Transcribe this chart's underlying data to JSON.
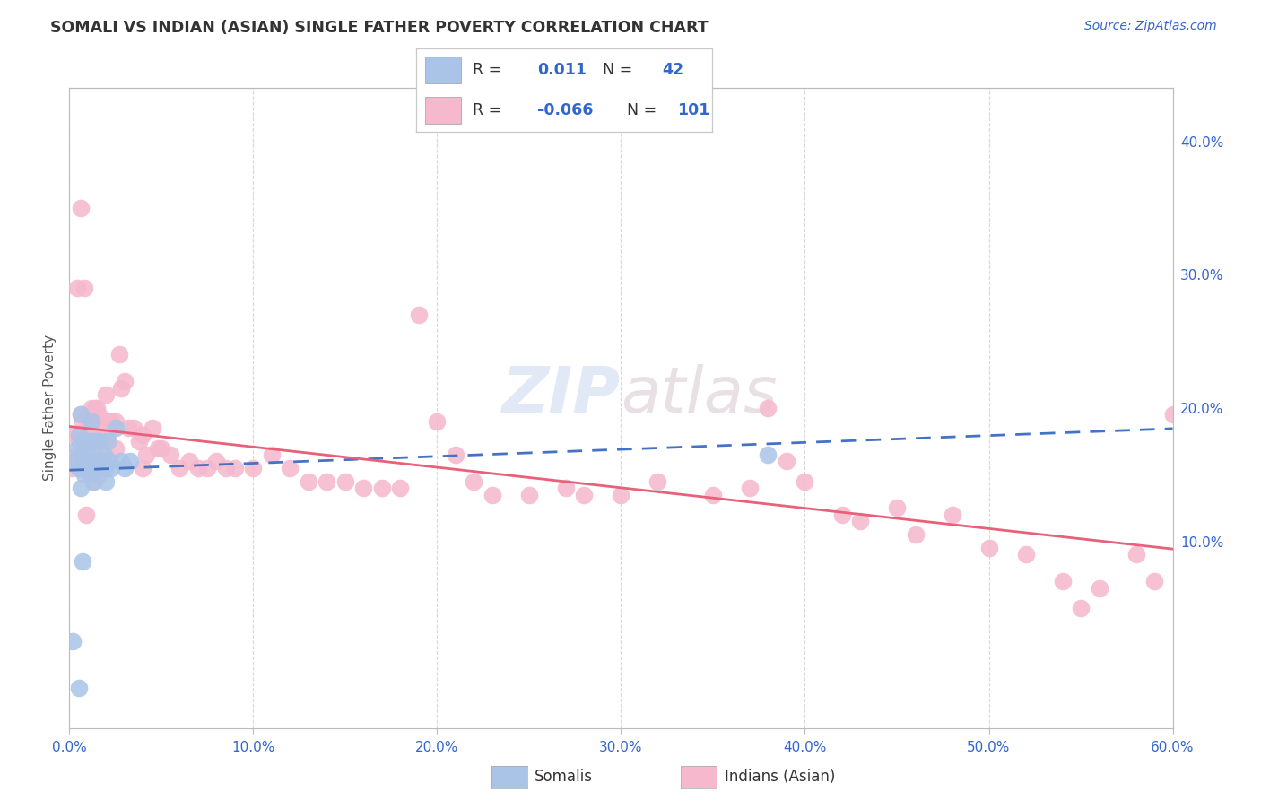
{
  "title": "SOMALI VS INDIAN (ASIAN) SINGLE FATHER POVERTY CORRELATION CHART",
  "source": "Source: ZipAtlas.com",
  "xlabel_tick_vals": [
    0.0,
    0.1,
    0.2,
    0.3,
    0.4,
    0.5,
    0.6
  ],
  "ylabel_right_tick_vals": [
    0.1,
    0.2,
    0.3,
    0.4
  ],
  "ylabel": "Single Father Poverty",
  "watermark_zip": "ZIP",
  "watermark_atlas": "atlas",
  "somali_color": "#aac4e8",
  "somali_edge": "#6699cc",
  "indian_color": "#f5b8cc",
  "indian_edge": "#e07090",
  "somali_line_color": "#4472c4",
  "indian_line_color": "#e8607a",
  "xlim": [
    0.0,
    0.6
  ],
  "ylim": [
    -0.04,
    0.44
  ],
  "background_color": "#ffffff",
  "grid_color": "#d8d8d8",
  "title_color": "#333333",
  "source_color": "#3366cc",
  "tick_color": "#3366cc",
  "legend_r_color": "#333333",
  "legend_val_color": "#3366cc",
  "somali_x": [
    0.002,
    0.003,
    0.004,
    0.005,
    0.005,
    0.005,
    0.006,
    0.006,
    0.007,
    0.007,
    0.008,
    0.008,
    0.009,
    0.009,
    0.01,
    0.01,
    0.01,
    0.011,
    0.011,
    0.012,
    0.012,
    0.013,
    0.013,
    0.014,
    0.014,
    0.015,
    0.015,
    0.016,
    0.016,
    0.017,
    0.018,
    0.019,
    0.02,
    0.02,
    0.021,
    0.022,
    0.023,
    0.025,
    0.028,
    0.03,
    0.033,
    0.38
  ],
  "somali_y": [
    0.025,
    0.16,
    0.17,
    0.155,
    0.18,
    -0.01,
    0.195,
    0.14,
    0.165,
    0.085,
    0.175,
    0.15,
    0.175,
    0.16,
    0.175,
    0.16,
    0.165,
    0.175,
    0.15,
    0.19,
    0.155,
    0.175,
    0.145,
    0.16,
    0.155,
    0.175,
    0.155,
    0.16,
    0.175,
    0.155,
    0.16,
    0.165,
    0.145,
    0.155,
    0.175,
    0.16,
    0.155,
    0.185,
    0.16,
    0.155,
    0.16,
    0.165
  ],
  "indian_x": [
    0.002,
    0.003,
    0.004,
    0.005,
    0.005,
    0.006,
    0.007,
    0.007,
    0.008,
    0.008,
    0.009,
    0.009,
    0.01,
    0.01,
    0.011,
    0.011,
    0.012,
    0.012,
    0.013,
    0.013,
    0.014,
    0.014,
    0.015,
    0.015,
    0.016,
    0.017,
    0.018,
    0.019,
    0.02,
    0.021,
    0.022,
    0.023,
    0.025,
    0.027,
    0.028,
    0.03,
    0.032,
    0.035,
    0.038,
    0.04,
    0.042,
    0.045,
    0.048,
    0.05,
    0.055,
    0.06,
    0.065,
    0.07,
    0.075,
    0.08,
    0.085,
    0.09,
    0.1,
    0.11,
    0.12,
    0.13,
    0.14,
    0.15,
    0.16,
    0.17,
    0.18,
    0.19,
    0.2,
    0.21,
    0.22,
    0.23,
    0.25,
    0.27,
    0.28,
    0.3,
    0.32,
    0.35,
    0.37,
    0.38,
    0.39,
    0.4,
    0.42,
    0.43,
    0.45,
    0.46,
    0.48,
    0.5,
    0.52,
    0.54,
    0.55,
    0.56,
    0.58,
    0.59,
    0.6,
    0.003,
    0.004,
    0.006,
    0.008,
    0.009,
    0.011,
    0.013,
    0.016,
    0.018,
    0.02,
    0.025,
    0.04
  ],
  "indian_y": [
    0.155,
    0.18,
    0.165,
    0.175,
    0.155,
    0.195,
    0.16,
    0.19,
    0.16,
    0.165,
    0.175,
    0.16,
    0.185,
    0.17,
    0.185,
    0.165,
    0.175,
    0.2,
    0.195,
    0.165,
    0.2,
    0.18,
    0.2,
    0.185,
    0.195,
    0.175,
    0.185,
    0.165,
    0.19,
    0.18,
    0.19,
    0.19,
    0.19,
    0.24,
    0.215,
    0.22,
    0.185,
    0.185,
    0.175,
    0.18,
    0.165,
    0.185,
    0.17,
    0.17,
    0.165,
    0.155,
    0.16,
    0.155,
    0.155,
    0.16,
    0.155,
    0.155,
    0.155,
    0.165,
    0.155,
    0.145,
    0.145,
    0.145,
    0.14,
    0.14,
    0.14,
    0.27,
    0.19,
    0.165,
    0.145,
    0.135,
    0.135,
    0.14,
    0.135,
    0.135,
    0.145,
    0.135,
    0.14,
    0.2,
    0.16,
    0.145,
    0.12,
    0.115,
    0.125,
    0.105,
    0.12,
    0.095,
    0.09,
    0.07,
    0.05,
    0.065,
    0.09,
    0.07,
    0.195,
    0.16,
    0.29,
    0.35,
    0.29,
    0.12,
    0.19,
    0.145,
    0.15,
    0.18,
    0.21,
    0.17,
    0.155
  ]
}
